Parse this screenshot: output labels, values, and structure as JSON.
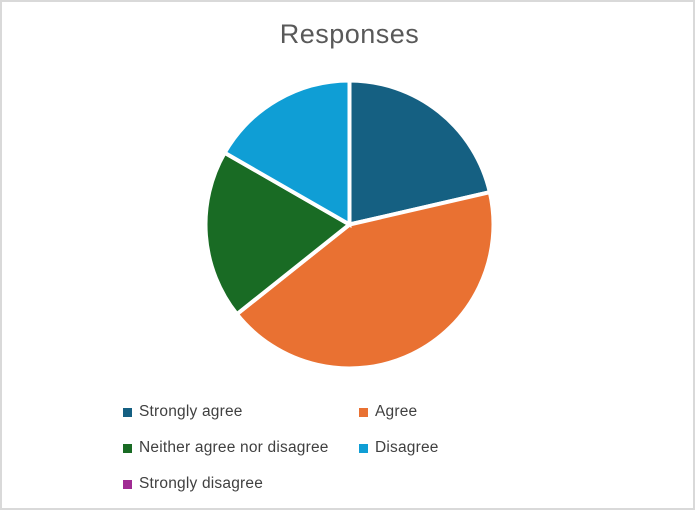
{
  "frame": {
    "background": "#FFFFFF",
    "border_color": "#D9D9D9"
  },
  "chart_data": {
    "type": "pie",
    "title": "Responses",
    "categories": [
      "Strongly agree",
      "Agree",
      "Neither agree nor disagree",
      "Disagree",
      "Strongly disagree"
    ],
    "values_percent": [
      21.4,
      42.9,
      19.0,
      16.7,
      0
    ],
    "colors": [
      "#156082",
      "#E97132",
      "#196B24",
      "#0F9ED5",
      "#A02B93"
    ],
    "start_angle_deg": 0,
    "direction": "clockwise",
    "slice_border_color": "#FFFFFF",
    "legend_position": "bottom",
    "title_color": "#595959",
    "legend_text_color": "#404040"
  }
}
